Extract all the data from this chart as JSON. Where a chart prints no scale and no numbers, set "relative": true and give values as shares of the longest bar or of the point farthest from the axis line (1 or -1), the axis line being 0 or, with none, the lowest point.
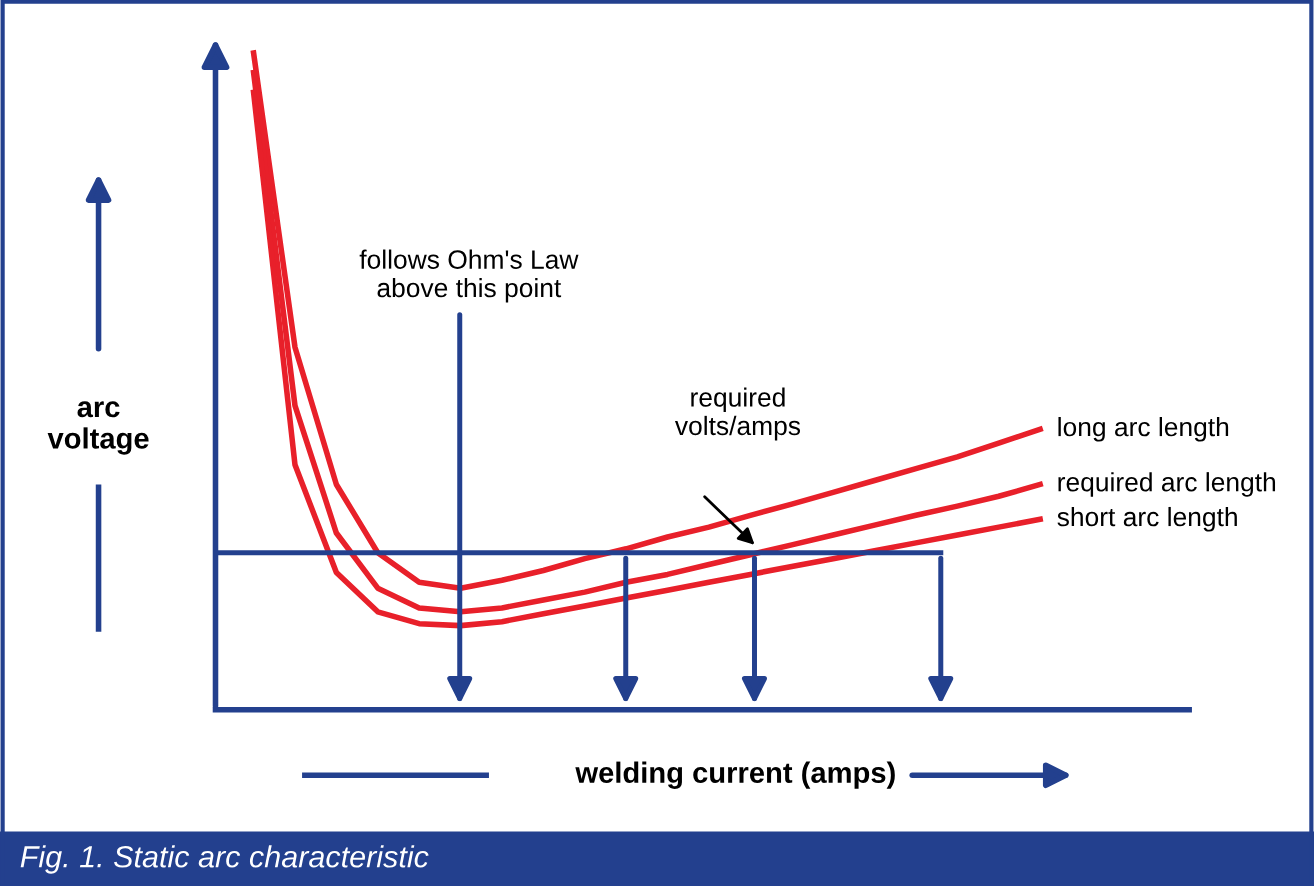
{
  "chart_data": {
    "type": "line",
    "relative": true,
    "title": "Fig. 1. Static arc characteristic",
    "xlabel": "welding current (amps)",
    "ylabel": "arc\nvoltage",
    "categories": [
      null,
      null,
      null,
      null,
      null,
      null,
      null,
      null,
      null,
      null,
      null,
      null,
      null,
      null,
      null,
      null,
      null,
      null,
      null,
      null
    ],
    "series": [
      {
        "name": "long arc length",
        "color": "#e8202a",
        "values": [
          1.0,
          0.552,
          0.343,
          0.239,
          0.194,
          0.185,
          0.197,
          0.212,
          0.23,
          0.245,
          0.263,
          0.278,
          0.296,
          0.313,
          0.331,
          0.349,
          0.367,
          0.385,
          0.406,
          0.427
        ]
      },
      {
        "name": "required arc length",
        "color": "#e8202a",
        "values": [
          0.97,
          0.463,
          0.269,
          0.185,
          0.155,
          0.149,
          0.155,
          0.167,
          0.179,
          0.194,
          0.206,
          0.221,
          0.236,
          0.251,
          0.266,
          0.281,
          0.296,
          0.31,
          0.325,
          0.343
        ]
      },
      {
        "name": "short arc length",
        "color": "#e8202a",
        "values": [
          0.94,
          0.373,
          0.209,
          0.149,
          0.131,
          0.128,
          0.134,
          0.146,
          0.158,
          0.17,
          0.182,
          0.194,
          0.206,
          0.218,
          0.23,
          0.242,
          0.254,
          0.266,
          0.278,
          0.29
        ]
      }
    ],
    "ref_lines": [
      {
        "axis": "y",
        "value": 0.239,
        "color": "#23408e"
      }
    ],
    "annotations": [
      "follows Ohm's Law\nabove this point",
      "required\nvolts/amps"
    ],
    "line_style": "solid"
  }
}
